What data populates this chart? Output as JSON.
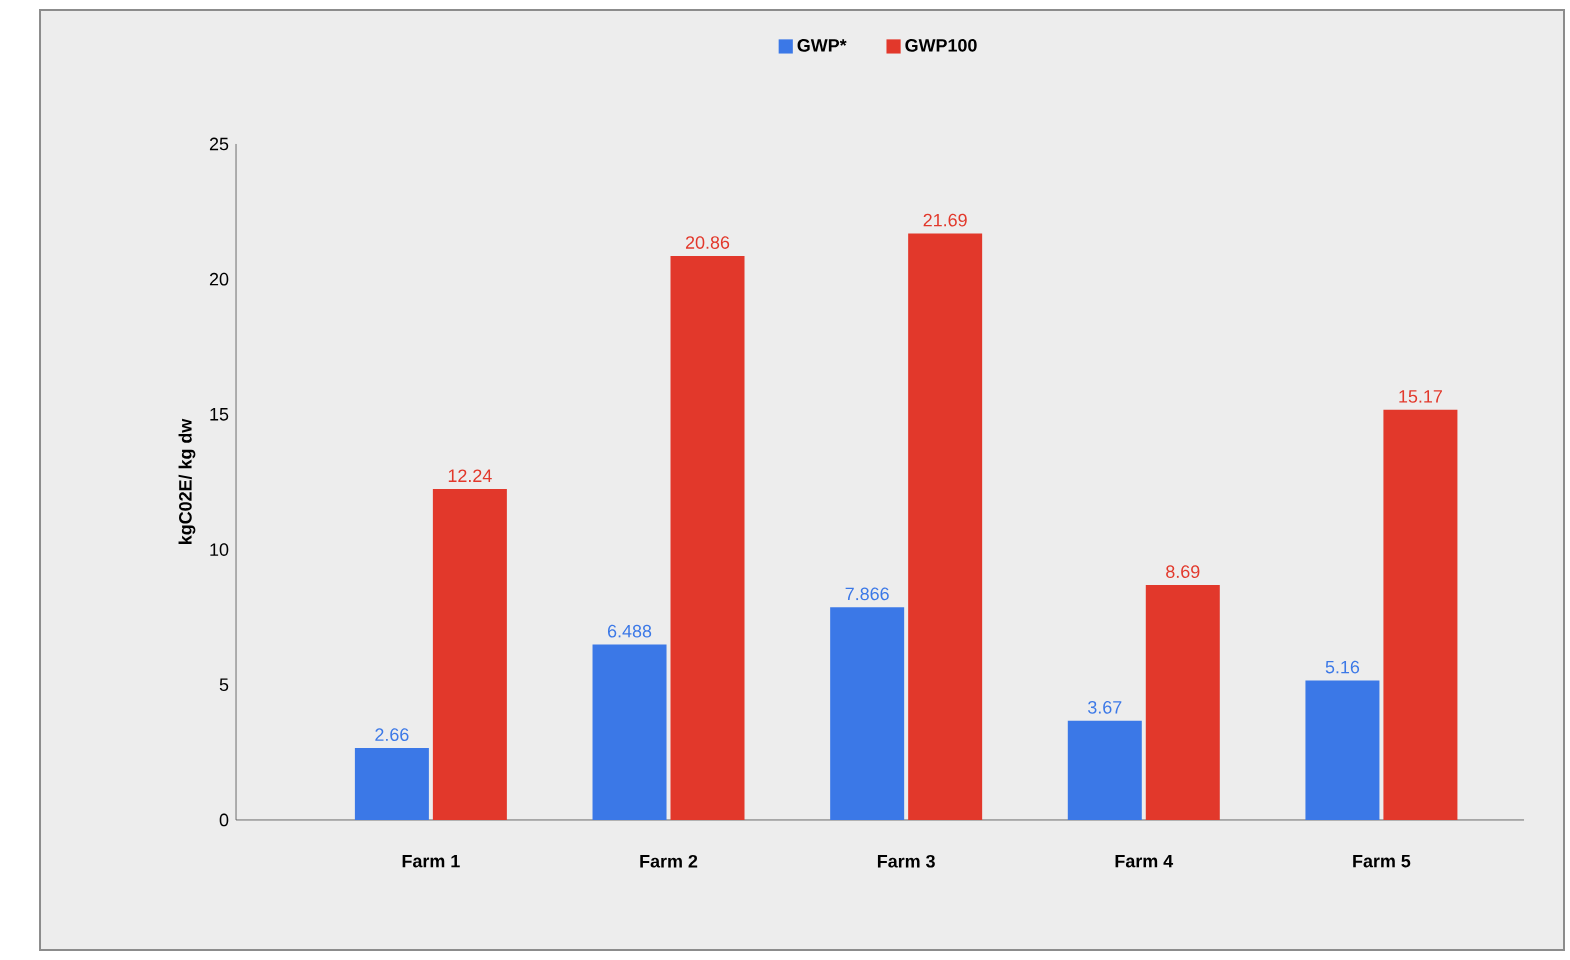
{
  "chart_data": {
    "type": "bar",
    "ylabel": "kgC02E/ kg dw",
    "categories": [
      "Farm 1",
      "Farm 2",
      "Farm 3",
      "Farm 4",
      "Farm 5"
    ],
    "series": [
      {
        "name": "GWP*",
        "color": "#3b78e7",
        "values": [
          2.66,
          6.488,
          7.866,
          3.67,
          5.16
        ]
      },
      {
        "name": "GWP100",
        "color": "#e2382b",
        "values": [
          12.24,
          20.86,
          21.69,
          8.69,
          15.17
        ]
      }
    ],
    "ylim": [
      0,
      25
    ],
    "yticks": [
      0,
      5,
      10,
      15,
      20,
      25
    ],
    "data_labels": true,
    "legend": "top",
    "grid": false
  }
}
